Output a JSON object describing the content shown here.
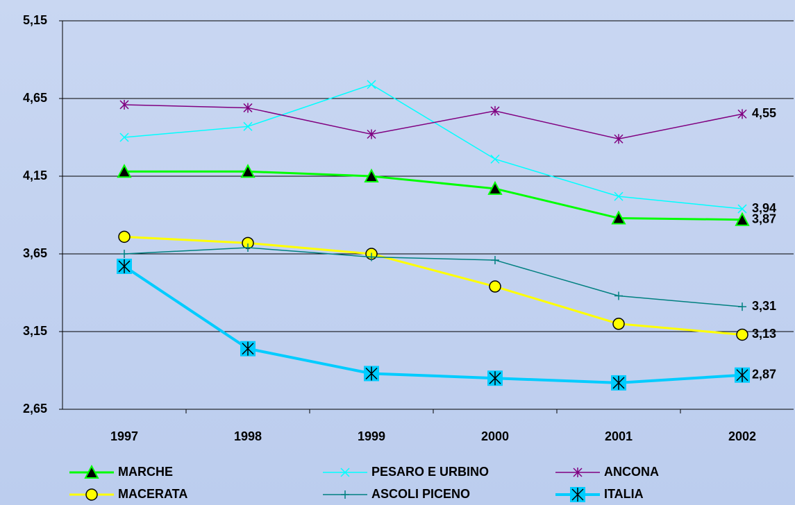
{
  "chart_data": {
    "type": "line",
    "categories": [
      "1997",
      "1998",
      "1999",
      "2000",
      "2001",
      "2002"
    ],
    "ylim": [
      2.65,
      5.15
    ],
    "yticks": [
      {
        "value": 2.65,
        "label": "2,65"
      },
      {
        "value": 3.15,
        "label": "3,15"
      },
      {
        "value": 3.65,
        "label": "3,65"
      },
      {
        "value": 4.15,
        "label": "4,15"
      },
      {
        "value": 4.65,
        "label": "4,65"
      },
      {
        "value": 5.15,
        "label": "5,15"
      }
    ],
    "grid": true,
    "legend": "bottom",
    "series": [
      {
        "name": "MARCHE",
        "color": "#00ff00",
        "marker": "triangle",
        "values": [
          4.18,
          4.18,
          4.15,
          4.07,
          3.88,
          3.87
        ],
        "value_labels": [
          null,
          null,
          null,
          null,
          null,
          "3,87"
        ]
      },
      {
        "name": "PESARO E URBINO",
        "color": "#00ffff",
        "marker": "x",
        "values": [
          4.4,
          4.47,
          4.74,
          4.26,
          4.02,
          3.94
        ],
        "value_labels": [
          null,
          null,
          null,
          null,
          null,
          "3,94"
        ]
      },
      {
        "name": "ANCONA",
        "color": "#800080",
        "marker": "star",
        "values": [
          4.61,
          4.59,
          4.42,
          4.57,
          4.39,
          4.55
        ],
        "value_labels": [
          null,
          null,
          null,
          null,
          null,
          "4,55"
        ]
      },
      {
        "name": "MACERATA",
        "color": "#ffff00",
        "marker": "circle",
        "values": [
          3.76,
          3.72,
          3.65,
          3.44,
          3.2,
          3.13
        ],
        "value_labels": [
          null,
          null,
          null,
          null,
          null,
          "3,13"
        ]
      },
      {
        "name": "ASCOLI PICENO",
        "color": "#008080",
        "marker": "plus",
        "values": [
          3.65,
          3.69,
          3.63,
          3.61,
          3.38,
          3.31
        ],
        "value_labels": [
          null,
          null,
          null,
          null,
          null,
          "3,31"
        ]
      },
      {
        "name": "ITALIA",
        "color": "#00ccff",
        "marker": "square-star",
        "values": [
          3.57,
          3.04,
          2.88,
          2.85,
          2.82,
          2.87
        ],
        "value_labels": [
          null,
          null,
          null,
          null,
          null,
          "2,87"
        ]
      }
    ]
  }
}
